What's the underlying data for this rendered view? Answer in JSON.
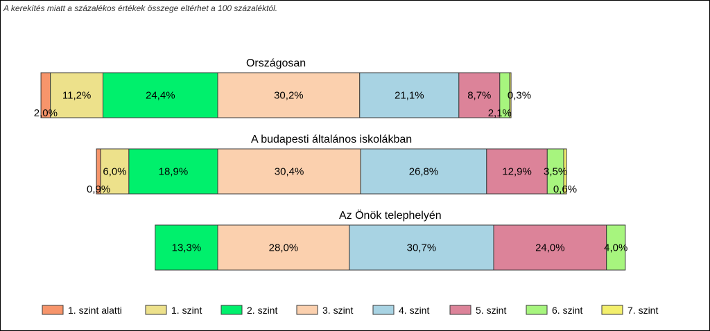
{
  "note": "A kerekítés miatt a  százalékos értékek összege eltérhet a 100 százaléktól.",
  "chart_data": {
    "type": "bar",
    "orientation": "horizontal-stacked",
    "categories": [
      "Országosan",
      "A budapesti általános iskolákban",
      "Az Önök telephelyén"
    ],
    "series": [
      {
        "name": "1. szint alatti",
        "color": "#f7956b",
        "values": [
          2.0,
          0.9,
          0.0
        ],
        "labels": [
          "2,0%",
          "0,9%",
          ""
        ]
      },
      {
        "name": "1. szint",
        "color": "#ede18b",
        "values": [
          11.2,
          6.0,
          0.0
        ],
        "labels": [
          "11,2%",
          "6,0%",
          ""
        ]
      },
      {
        "name": "2. szint",
        "color": "#00f06c",
        "values": [
          24.4,
          18.9,
          13.3
        ],
        "labels": [
          "24,4%",
          "18,9%",
          "13,3%"
        ]
      },
      {
        "name": "3. szint",
        "color": "#fbd0ae",
        "values": [
          30.2,
          30.4,
          28.0
        ],
        "labels": [
          "30,2%",
          "30,4%",
          "28,0%"
        ]
      },
      {
        "name": "4. szint",
        "color": "#a8d3e3",
        "values": [
          21.1,
          26.8,
          30.7
        ],
        "labels": [
          "21,1%",
          "26,8%",
          "30,7%"
        ]
      },
      {
        "name": "5. szint",
        "color": "#dc8399",
        "values": [
          8.7,
          12.9,
          24.0
        ],
        "labels": [
          "8,7%",
          "12,9%",
          "24,0%"
        ]
      },
      {
        "name": "6. szint",
        "color": "#a7f57e",
        "values": [
          2.1,
          3.5,
          4.0
        ],
        "labels": [
          "2,1%",
          "3,5%",
          "4,0%"
        ]
      },
      {
        "name": "7. szint",
        "color": "#f3ef6c",
        "values": [
          0.3,
          0.6,
          0.0
        ],
        "labels": [
          "0,3%",
          "0,6%",
          ""
        ]
      }
    ],
    "legend": "bottom"
  }
}
